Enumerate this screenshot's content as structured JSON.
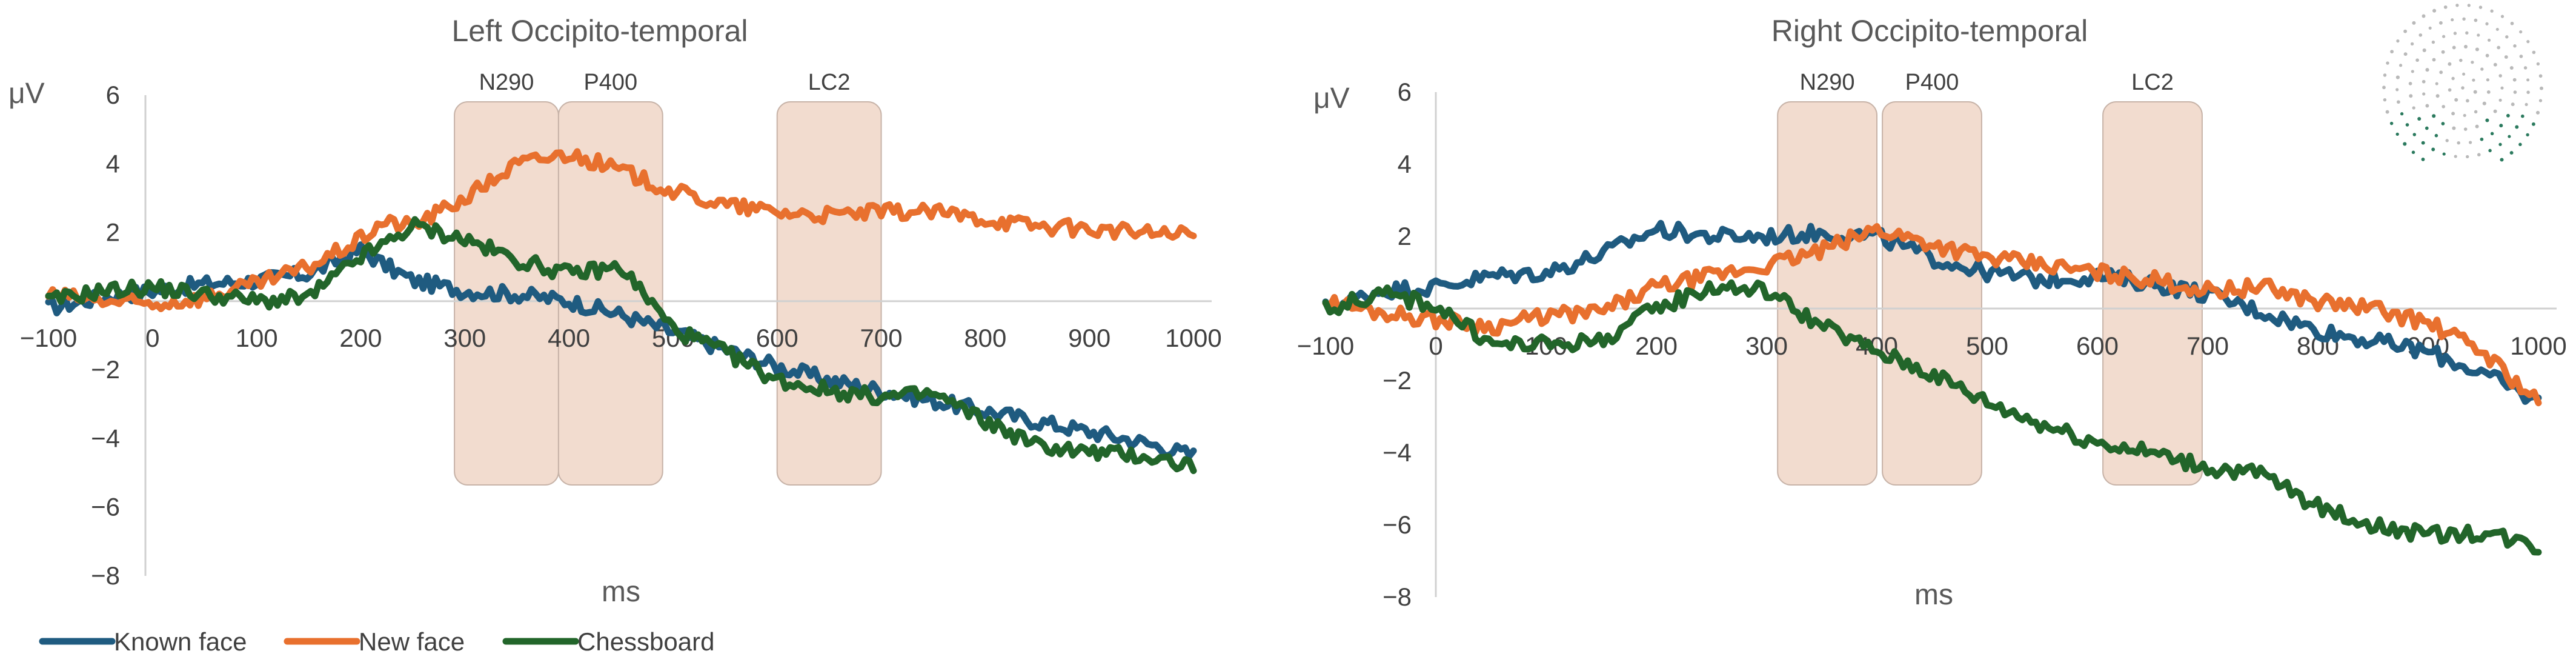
{
  "colors": {
    "known_face": "#1f5b80",
    "new_face": "#e8702e",
    "chessboard": "#22652a",
    "window_fill": "#f2dccf"
  },
  "legend": [
    {
      "label": "Known face",
      "color": "#1f5b80"
    },
    {
      "label": "New face",
      "color": "#e8702e"
    },
    {
      "label": "Chessboard",
      "color": "#22652a"
    }
  ],
  "chart_data": [
    {
      "type": "line",
      "title": "Left Occipito-temporal",
      "xlabel": "ms",
      "ylabel": "μV",
      "xlim": [
        -100,
        1000
      ],
      "ylim": [
        -8,
        6
      ],
      "xticks": [
        -100,
        0,
        100,
        200,
        300,
        400,
        500,
        600,
        700,
        800,
        900,
        1000
      ],
      "yticks": [
        6,
        4,
        2,
        -2,
        -4,
        -6,
        -8
      ],
      "grid": false,
      "windows": [
        {
          "label": "N290",
          "start": 290,
          "end": 390
        },
        {
          "label": "P400",
          "start": 390,
          "end": 490
        },
        {
          "label": "LC2",
          "start": 600,
          "end": 700
        }
      ],
      "x": [
        -100,
        -50,
        0,
        50,
        100,
        150,
        200,
        220,
        250,
        300,
        350,
        400,
        450,
        500,
        550,
        600,
        650,
        700,
        750,
        800,
        850,
        900,
        950,
        1000
      ],
      "series": [
        {
          "name": "Known face",
          "values": [
            -0.2,
            0.1,
            0.3,
            0.5,
            0.6,
            0.8,
            1.5,
            1.1,
            0.6,
            0.3,
            0.2,
            0.0,
            -0.4,
            -0.9,
            -1.4,
            -1.9,
            -2.3,
            -2.6,
            -2.9,
            -3.2,
            -3.5,
            -3.8,
            -4.1,
            -4.5
          ]
        },
        {
          "name": "New face",
          "values": [
            0.2,
            0.0,
            -0.1,
            0.1,
            0.5,
            1.0,
            1.8,
            2.3,
            2.2,
            3.0,
            4.0,
            4.3,
            3.8,
            3.2,
            2.8,
            2.6,
            2.5,
            2.6,
            2.6,
            2.4,
            2.2,
            2.1,
            2.0,
            1.9
          ]
        },
        {
          "name": "Chessboard",
          "values": [
            0.0,
            0.3,
            0.4,
            0.2,
            0.0,
            0.1,
            1.3,
            1.6,
            2.2,
            1.8,
            1.2,
            0.8,
            1.0,
            -0.8,
            -1.5,
            -2.3,
            -2.6,
            -2.8,
            -2.7,
            -3.5,
            -4.2,
            -4.4,
            -4.5,
            -4.8
          ]
        }
      ]
    },
    {
      "type": "line",
      "title": "Right Occipito-temporal",
      "xlabel": "ms",
      "ylabel": "μV",
      "xlim": [
        -100,
        1000
      ],
      "ylim": [
        -8,
        6
      ],
      "xticks": [
        -100,
        0,
        100,
        200,
        300,
        400,
        500,
        600,
        700,
        800,
        900,
        1000
      ],
      "yticks": [
        6,
        4,
        2,
        -2,
        -4,
        -6,
        -8
      ],
      "grid": false,
      "windows": [
        {
          "label": "N290",
          "start": 310,
          "end": 400
        },
        {
          "label": "P400",
          "start": 405,
          "end": 495
        },
        {
          "label": "LC2",
          "start": 605,
          "end": 695
        }
      ],
      "x": [
        -100,
        -50,
        0,
        50,
        100,
        150,
        200,
        250,
        300,
        350,
        400,
        450,
        500,
        550,
        600,
        650,
        700,
        750,
        800,
        850,
        900,
        950,
        1000
      ],
      "series": [
        {
          "name": "Known face",
          "values": [
            0.0,
            0.5,
            0.6,
            0.9,
            1.0,
            1.5,
            2.2,
            2.0,
            2.0,
            2.1,
            2.0,
            1.4,
            1.0,
            0.8,
            0.9,
            0.7,
            0.4,
            -0.1,
            -0.6,
            -0.9,
            -1.2,
            -1.8,
            -2.6
          ]
        },
        {
          "name": "New face",
          "values": [
            0.2,
            -0.1,
            -0.3,
            -0.5,
            -0.2,
            -0.1,
            0.6,
            0.9,
            1.2,
            1.6,
            2.2,
            1.8,
            1.4,
            1.2,
            1.0,
            0.8,
            0.5,
            0.6,
            0.2,
            0.0,
            -0.4,
            -1.2,
            -2.6
          ]
        },
        {
          "name": "Chessboard",
          "values": [
            0.0,
            0.4,
            0.1,
            -1.0,
            -1.0,
            -0.9,
            0.0,
            0.6,
            0.5,
            -0.5,
            -1.2,
            -1.8,
            -2.6,
            -3.2,
            -3.7,
            -4.0,
            -4.4,
            -4.6,
            -5.5,
            -6.0,
            -6.3,
            -6.2,
            -6.6
          ]
        }
      ]
    }
  ]
}
